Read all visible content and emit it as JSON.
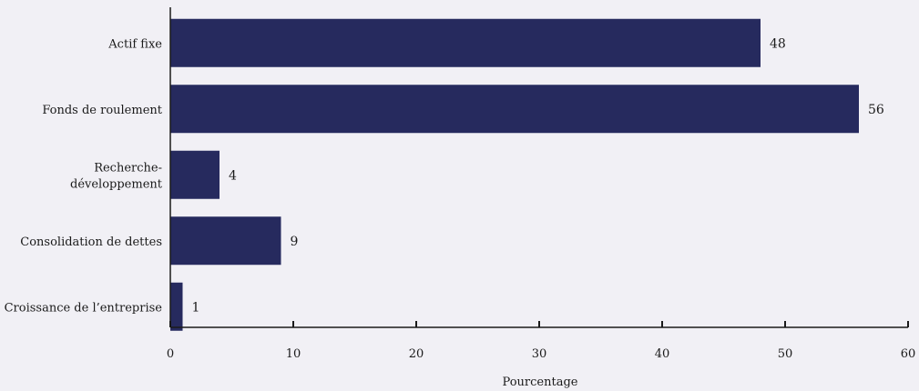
{
  "chart_data": {
    "type": "bar",
    "orientation": "horizontal",
    "categories": [
      "Actif fixe",
      "Fonds de roulement",
      "Recherche-\ndéveloppement",
      "Consolidation de dettes",
      "Croissance de l’entreprise"
    ],
    "values": [
      48,
      56,
      4,
      9,
      1
    ],
    "xlabel": "Pourcentage",
    "xlim": [
      0,
      60
    ],
    "xticks": [
      0,
      10,
      20,
      30,
      40,
      50,
      60
    ],
    "grid": false,
    "bar_color": "#262a5e"
  }
}
